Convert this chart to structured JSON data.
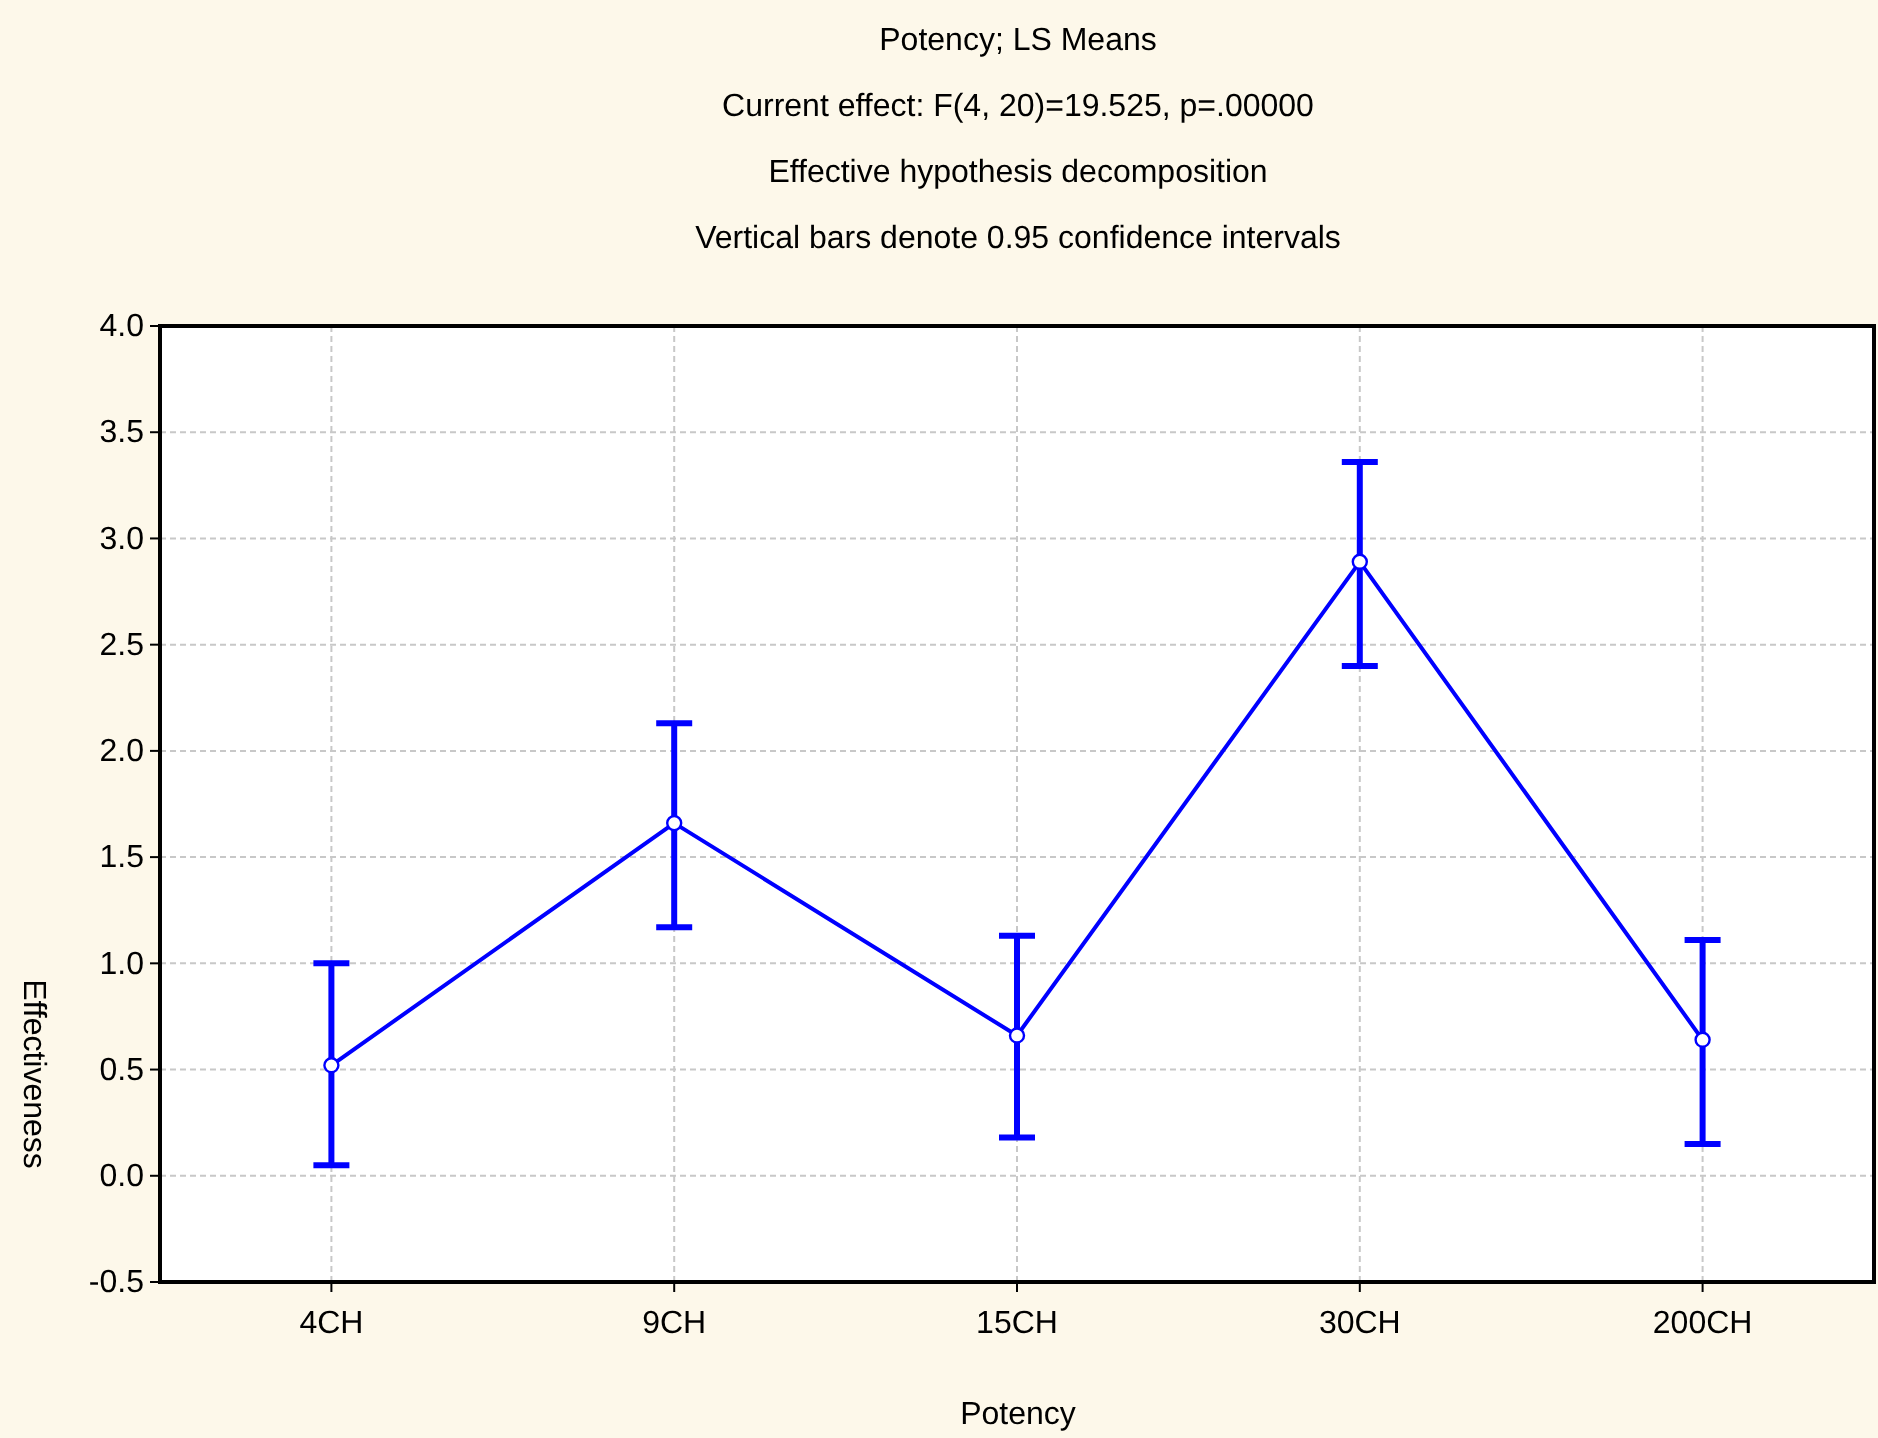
{
  "chart_data": {
    "type": "line",
    "title": "Potency; LS Means",
    "subtitle": "Current effect: F(4, 20)=19.525, p=.00000",
    "annotations": [
      "Effective hypothesis decomposition",
      "Vertical bars denote 0.95 confidence intervals"
    ],
    "xlabel": "Potency",
    "ylabel": "Effectiveness",
    "categories": [
      "4CH",
      "9CH",
      "15CH",
      "30CH",
      "200CH"
    ],
    "series": [
      {
        "color": "#0000ff",
        "values": [
          0.52,
          1.66,
          0.66,
          2.89,
          0.64
        ],
        "errors": [
          [
            0.05,
            1.0
          ],
          [
            1.17,
            2.13
          ],
          [
            0.18,
            1.13
          ],
          [
            2.4,
            3.36
          ],
          [
            0.15,
            1.11
          ]
        ]
      }
    ],
    "ylim": [
      -0.5,
      4.0
    ],
    "yticks": [
      {
        "value": -0.5,
        "label": "-0.5"
      },
      {
        "value": 0,
        "label": "0.0"
      },
      {
        "value": 0.5,
        "label": "0.5"
      },
      {
        "value": 1,
        "label": "1.0"
      },
      {
        "value": 1.5,
        "label": "1.5"
      },
      {
        "value": 2,
        "label": "2.0"
      },
      {
        "value": 2.5,
        "label": "2.5"
      },
      {
        "value": 3,
        "label": "3.0"
      },
      {
        "value": 3.5,
        "label": "3.5"
      },
      {
        "value": 4,
        "label": "4.0"
      }
    ],
    "grid": true,
    "marker": "circle",
    "line_style": "solid"
  }
}
